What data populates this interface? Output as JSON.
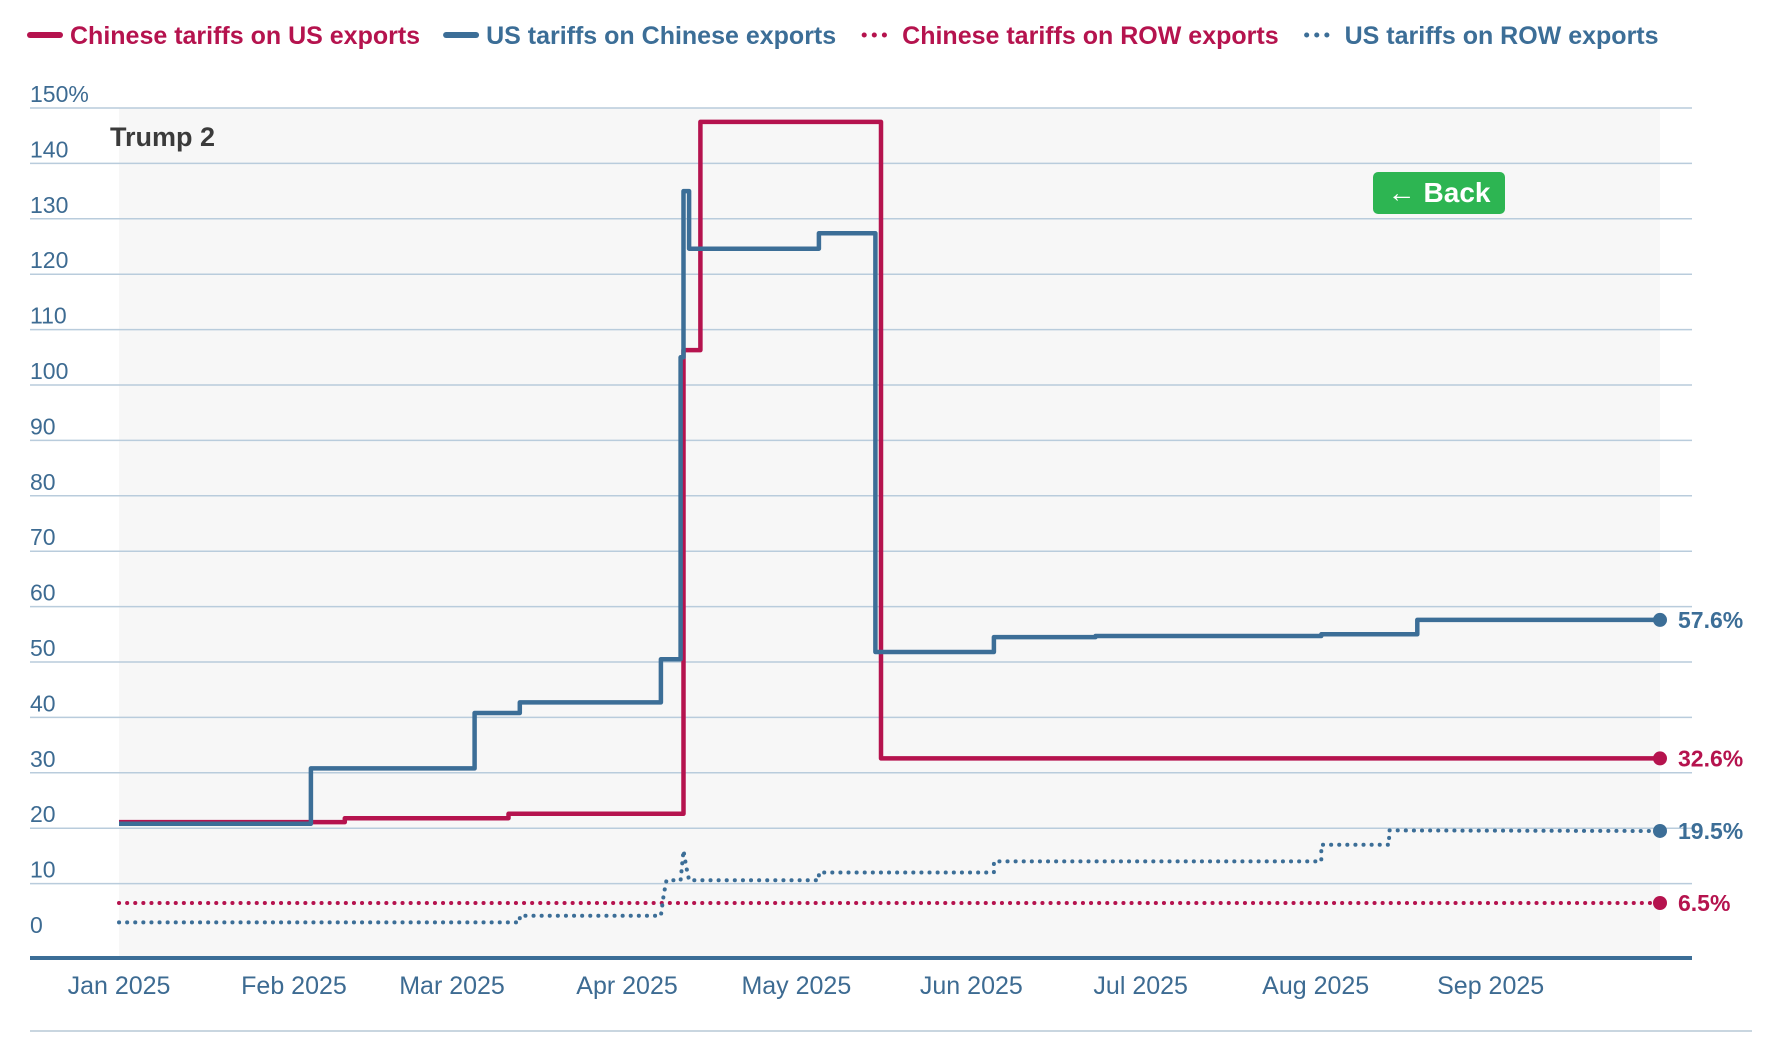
{
  "back_button": {
    "label": "Back",
    "arrow": "←"
  },
  "chart_data": {
    "type": "line",
    "step": true,
    "title": "",
    "xlabel": "",
    "ylabel": "",
    "ylim": [
      0,
      150
    ],
    "y_ticks": [
      0,
      10,
      20,
      30,
      40,
      50,
      60,
      70,
      80,
      90,
      100,
      110,
      120,
      130,
      140,
      150
    ],
    "y_tick_labels": [
      "0",
      "10",
      "20",
      "30",
      "40",
      "50",
      "60",
      "70",
      "80",
      "90",
      "100",
      "110",
      "120",
      "130",
      "140",
      "150%"
    ],
    "x_range_days": [
      0,
      273
    ],
    "x_ticks": [
      {
        "label": "Jan 2025",
        "day": 0
      },
      {
        "label": "Feb 2025",
        "day": 31
      },
      {
        "label": "Mar 2025",
        "day": 59
      },
      {
        "label": "Apr 2025",
        "day": 90
      },
      {
        "label": "May 2025",
        "day": 120
      },
      {
        "label": "Jun 2025",
        "day": 151
      },
      {
        "label": "Jul 2025",
        "day": 181
      },
      {
        "label": "Aug 2025",
        "day": 212
      },
      {
        "label": "Sep 2025",
        "day": 243
      }
    ],
    "annotation": "Trump 2",
    "grid": true,
    "legend_position": "top",
    "series": [
      {
        "name": "Chinese tariffs on US exports",
        "color": "#b5134e",
        "style": "solid",
        "end_label": "32.6%",
        "points": [
          [
            0,
            21.1
          ],
          [
            40,
            21.1
          ],
          [
            40,
            21.8
          ],
          [
            69,
            21.8
          ],
          [
            69,
            22.6
          ],
          [
            100,
            22.6
          ],
          [
            100,
            106.3
          ],
          [
            103,
            106.3
          ],
          [
            103,
            147.5
          ],
          [
            135,
            147.5
          ],
          [
            135,
            32.6
          ],
          [
            273,
            32.6
          ]
        ]
      },
      {
        "name": "US tariffs on Chinese exports",
        "color": "#3c6e97",
        "style": "solid",
        "end_label": "57.6%",
        "points": [
          [
            0,
            20.8
          ],
          [
            34,
            20.8
          ],
          [
            34,
            30.8
          ],
          [
            63,
            30.8
          ],
          [
            63,
            40.8
          ],
          [
            71,
            40.8
          ],
          [
            71,
            42.7
          ],
          [
            96,
            42.7
          ],
          [
            96,
            50.5
          ],
          [
            99.5,
            50.5
          ],
          [
            99.5,
            105
          ],
          [
            100,
            105
          ],
          [
            100,
            135
          ],
          [
            101,
            135
          ],
          [
            101,
            124.6
          ],
          [
            124,
            124.6
          ],
          [
            124,
            127.4
          ],
          [
            134,
            127.4
          ],
          [
            134,
            51.8
          ],
          [
            155,
            51.8
          ],
          [
            155,
            54.5
          ],
          [
            173,
            54.5
          ],
          [
            173,
            54.7
          ],
          [
            213,
            54.7
          ],
          [
            213,
            55
          ],
          [
            230,
            55
          ],
          [
            230,
            57.6
          ],
          [
            273,
            57.6
          ]
        ]
      },
      {
        "name": "Chinese tariffs on ROW exports",
        "color": "#b5134e",
        "style": "dotted",
        "end_label": "6.5%",
        "points": [
          [
            0,
            6.5
          ],
          [
            273,
            6.5
          ]
        ]
      },
      {
        "name": "US tariffs on ROW exports",
        "color": "#3c6e97",
        "style": "dotted",
        "end_label": "19.5%",
        "points": [
          [
            0,
            3
          ],
          [
            71,
            3
          ],
          [
            71,
            4.2
          ],
          [
            96,
            4.2
          ],
          [
            96.5,
            8
          ],
          [
            97,
            10.6
          ],
          [
            99.5,
            10.6
          ],
          [
            100,
            16
          ],
          [
            100.5,
            13
          ],
          [
            101,
            10.6
          ],
          [
            124,
            10.6
          ],
          [
            124,
            12
          ],
          [
            155,
            12
          ],
          [
            155,
            14
          ],
          [
            213,
            14
          ],
          [
            213,
            17
          ],
          [
            225,
            17
          ],
          [
            225,
            19.6
          ],
          [
            273,
            19.5
          ]
        ]
      }
    ]
  }
}
